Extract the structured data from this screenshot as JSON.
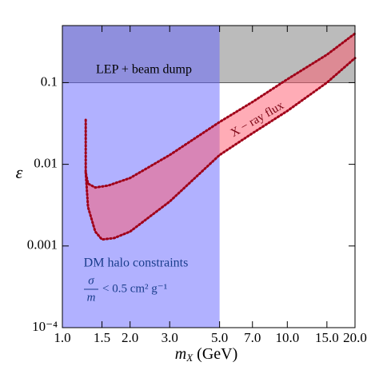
{
  "chart_data": {
    "type": "line",
    "xlog": true,
    "ylog": true,
    "xlim": [
      1,
      20
    ],
    "ylim": [
      0.0001,
      0.5
    ],
    "xticks": [
      {
        "value": 1,
        "label": "1.0"
      },
      1.5,
      {
        "value": 2,
        "label": "2.0"
      },
      {
        "value": 3,
        "label": "3.0"
      },
      {
        "value": 5,
        "label": "5.0"
      },
      {
        "value": 7,
        "label": "7.0"
      },
      {
        "value": 10,
        "label": "10.0"
      },
      {
        "value": 15,
        "label": "15.0"
      },
      {
        "value": 20,
        "label": "20.0"
      }
    ],
    "yticks": [
      {
        "value": 0.0001,
        "label": "10⁻⁴"
      },
      0.001,
      0.01,
      0.1
    ],
    "ylabel": "ε",
    "xlabel": "m",
    "xlabel_sub": "X",
    "xlabel_unit": "(GeV)",
    "regions": [
      {
        "name": "LEP + beam dump",
        "ymin": 0.1,
        "color": "rgba(120,120,120,0.5)"
      },
      {
        "name": "DM halo constraints",
        "xmax": 5,
        "color": "rgba(100,100,255,0.5)"
      }
    ],
    "annotations": {
      "numerator": "σ",
      "denominator": "m",
      "rest": "< 0.5 cm² g⁻¹",
      "band": "X − ray flux"
    },
    "band_color": "rgba(255,90,110,0.5)",
    "series": [
      {
        "color": "#a00018",
        "x": [
          1.27,
          1.27,
          1.3,
          1.4,
          1.6,
          2,
          3,
          5,
          7,
          10,
          15,
          20
        ],
        "values": [
          0.035,
          0.008,
          0.0058,
          0.0052,
          0.0055,
          0.0068,
          0.013,
          0.033,
          0.058,
          0.11,
          0.22,
          0.4
        ]
      },
      {
        "color": "#a00018",
        "x": [
          1.27,
          1.3,
          1.4,
          1.5,
          1.7,
          2,
          3,
          5,
          7,
          10,
          15,
          20
        ],
        "values": [
          0.008,
          0.003,
          0.0015,
          0.0012,
          0.00125,
          0.0015,
          0.0035,
          0.013,
          0.024,
          0.045,
          0.1,
          0.2
        ]
      }
    ]
  }
}
